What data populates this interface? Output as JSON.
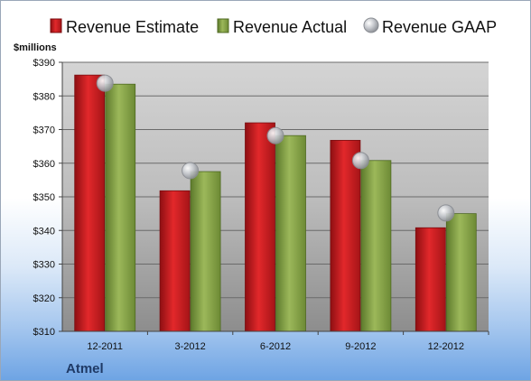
{
  "chart_data": {
    "type": "bar",
    "company": "Atmel",
    "unit_label": "$millions",
    "categories": [
      "12-2011",
      "3-2012",
      "6-2012",
      "9-2012",
      "12-2012"
    ],
    "series": [
      {
        "name": "Revenue Estimate",
        "values": [
          386.2,
          351.8,
          372.0,
          366.8,
          340.8
        ],
        "color": "#d7191c",
        "mark": "bar"
      },
      {
        "name": "Revenue Actual",
        "values": [
          383.5,
          357.5,
          368.2,
          360.8,
          345.0
        ],
        "color": "#8aa34a",
        "mark": "bar"
      },
      {
        "name": "Revenue GAAP",
        "values": [
          383.8,
          357.8,
          368.2,
          360.8,
          345.2
        ],
        "color": "#b9bcc3",
        "mark": "marker"
      }
    ],
    "y_ticks": [
      "$310",
      "$320",
      "$330",
      "$340",
      "$350",
      "$360",
      "$370",
      "$380",
      "$390"
    ],
    "ylim": [
      310,
      390
    ],
    "grid": true,
    "legend": "top"
  }
}
